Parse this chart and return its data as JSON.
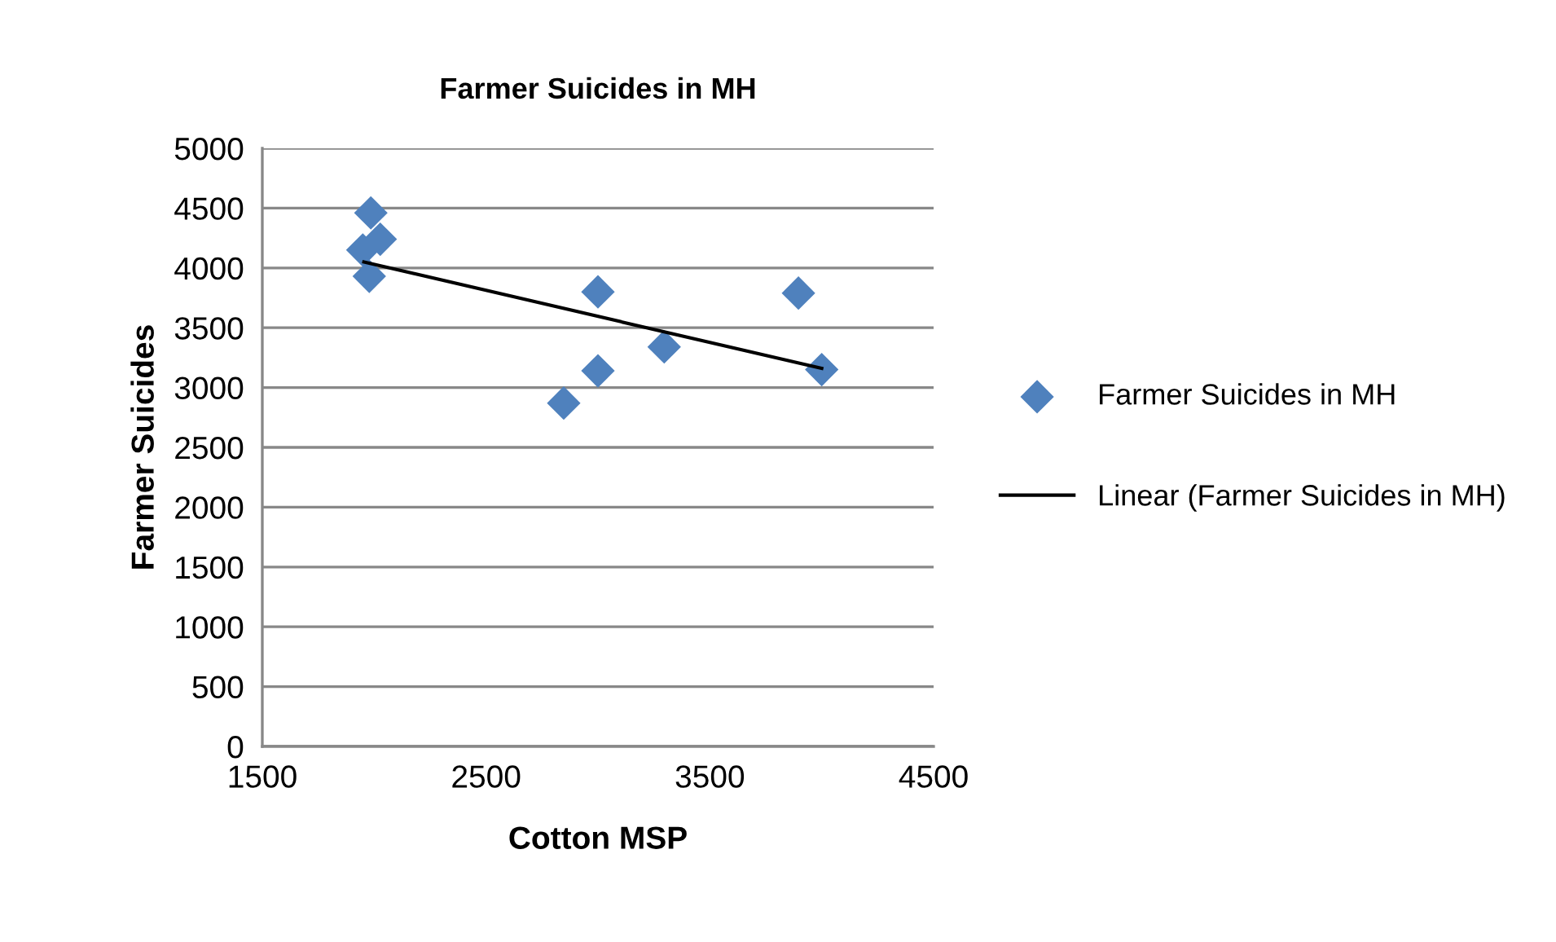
{
  "chart_data": {
    "type": "scatter",
    "title": "Farmer Suicides in MH",
    "xlabel": "Cotton MSP",
    "ylabel": "Farmer Suicides",
    "xlim": [
      1500,
      4500
    ],
    "xticks": [
      1500,
      2500,
      3500,
      4500
    ],
    "ylim": [
      0,
      5000
    ],
    "yticks": [
      0,
      500,
      1000,
      1500,
      2000,
      2500,
      3000,
      3500,
      4000,
      4500,
      5000
    ],
    "grid": "y",
    "legend": "right",
    "marker": "diamond",
    "series": [
      {
        "name": "Farmer Suicides in MH",
        "color": "#4f81bd",
        "x": [
          1985,
          2027,
          1949,
          1978,
          3000,
          3000,
          2847,
          3296,
          3896,
          4000
        ],
        "values": [
          4460,
          4240,
          4150,
          3930,
          3800,
          3140,
          2870,
          3340,
          3790,
          3150
        ]
      },
      {
        "name": "Linear (Farmer Suicides in MH)",
        "type": "line",
        "color": "#000000",
        "x": [
          1954,
          4000
        ],
        "values": [
          4050,
          3160
        ],
        "marker": "none",
        "line_style": "solid"
      }
    ]
  }
}
